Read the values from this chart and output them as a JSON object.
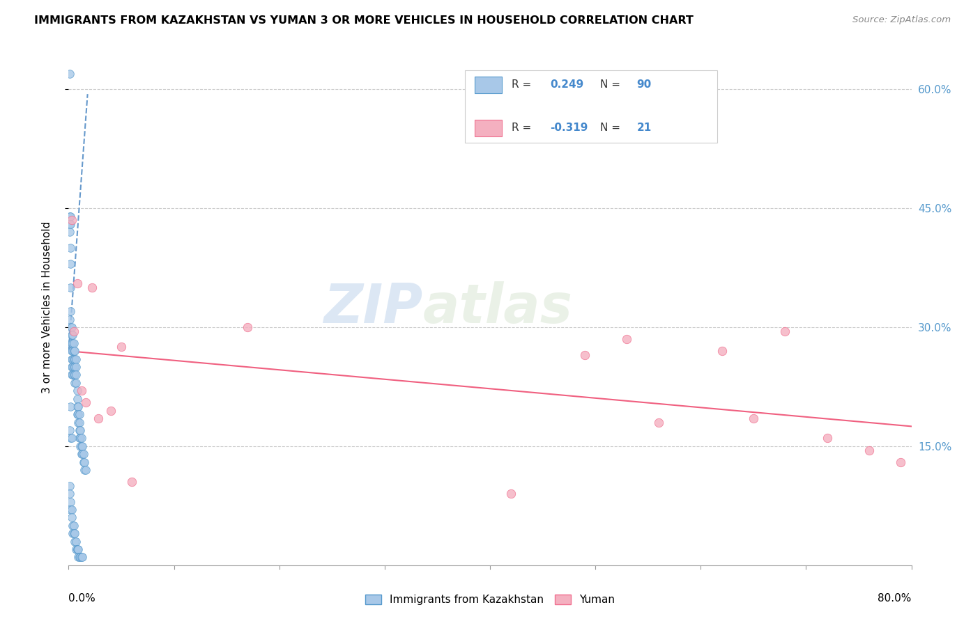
{
  "title": "IMMIGRANTS FROM KAZAKHSTAN VS YUMAN 3 OR MORE VEHICLES IN HOUSEHOLD CORRELATION CHART",
  "source": "Source: ZipAtlas.com",
  "ylabel": "3 or more Vehicles in Household",
  "right_yticks": [
    "15.0%",
    "30.0%",
    "45.0%",
    "60.0%"
  ],
  "right_ytick_vals": [
    0.15,
    0.3,
    0.45,
    0.6
  ],
  "xlim": [
    0.0,
    0.8
  ],
  "ylim": [
    0.0,
    0.65
  ],
  "legend_labels": [
    "Immigrants from Kazakhstan",
    "Yuman"
  ],
  "R_blue": 0.249,
  "N_blue": 90,
  "R_pink": -0.319,
  "N_pink": 21,
  "blue_color": "#a8c8e8",
  "pink_color": "#f4b0c0",
  "blue_edge_color": "#5599cc",
  "pink_edge_color": "#f07090",
  "blue_line_color": "#6699cc",
  "pink_line_color": "#f06080",
  "grid_color": "#cccccc",
  "watermark_color": "#d8e8f4",
  "blue_scatter_x": [
    0.001,
    0.001,
    0.001,
    0.001,
    0.001,
    0.002,
    0.002,
    0.002,
    0.002,
    0.002,
    0.002,
    0.002,
    0.002,
    0.003,
    0.003,
    0.003,
    0.003,
    0.003,
    0.003,
    0.003,
    0.004,
    0.004,
    0.004,
    0.004,
    0.004,
    0.004,
    0.005,
    0.005,
    0.005,
    0.005,
    0.005,
    0.006,
    0.006,
    0.006,
    0.006,
    0.006,
    0.007,
    0.007,
    0.007,
    0.007,
    0.008,
    0.008,
    0.008,
    0.008,
    0.009,
    0.009,
    0.009,
    0.01,
    0.01,
    0.01,
    0.01,
    0.011,
    0.011,
    0.011,
    0.012,
    0.012,
    0.012,
    0.013,
    0.013,
    0.014,
    0.014,
    0.015,
    0.015,
    0.016,
    0.001,
    0.001,
    0.002,
    0.002,
    0.003,
    0.003,
    0.004,
    0.004,
    0.005,
    0.005,
    0.006,
    0.006,
    0.007,
    0.007,
    0.008,
    0.008,
    0.009,
    0.009,
    0.01,
    0.011,
    0.012,
    0.013,
    0.001,
    0.002,
    0.003,
    0.002
  ],
  "blue_scatter_y": [
    0.62,
    0.44,
    0.43,
    0.42,
    0.31,
    0.44,
    0.43,
    0.4,
    0.38,
    0.35,
    0.32,
    0.3,
    0.28,
    0.3,
    0.29,
    0.28,
    0.27,
    0.26,
    0.25,
    0.24,
    0.29,
    0.28,
    0.27,
    0.26,
    0.25,
    0.24,
    0.28,
    0.27,
    0.26,
    0.25,
    0.24,
    0.27,
    0.26,
    0.25,
    0.24,
    0.23,
    0.26,
    0.25,
    0.24,
    0.23,
    0.22,
    0.21,
    0.2,
    0.19,
    0.2,
    0.19,
    0.18,
    0.19,
    0.18,
    0.17,
    0.16,
    0.17,
    0.16,
    0.15,
    0.16,
    0.15,
    0.14,
    0.15,
    0.14,
    0.14,
    0.13,
    0.13,
    0.12,
    0.12,
    0.1,
    0.09,
    0.08,
    0.07,
    0.07,
    0.06,
    0.05,
    0.04,
    0.05,
    0.04,
    0.04,
    0.03,
    0.03,
    0.02,
    0.02,
    0.02,
    0.02,
    0.01,
    0.01,
    0.01,
    0.01,
    0.01,
    0.17,
    0.16,
    0.16,
    0.2
  ],
  "pink_scatter_x": [
    0.003,
    0.005,
    0.008,
    0.012,
    0.016,
    0.022,
    0.028,
    0.04,
    0.05,
    0.06,
    0.17,
    0.42,
    0.49,
    0.53,
    0.56,
    0.62,
    0.65,
    0.68,
    0.72,
    0.76,
    0.79
  ],
  "pink_scatter_y": [
    0.435,
    0.295,
    0.355,
    0.22,
    0.205,
    0.35,
    0.185,
    0.195,
    0.275,
    0.105,
    0.3,
    0.09,
    0.265,
    0.285,
    0.18,
    0.27,
    0.185,
    0.295,
    0.16,
    0.145,
    0.13
  ],
  "blue_line_x": [
    0.0,
    0.018
  ],
  "blue_line_y_start": 0.27,
  "blue_line_slope": 18.0,
  "pink_line_x": [
    0.0,
    0.8
  ],
  "pink_line_y_start": 0.27,
  "pink_line_y_end": 0.175
}
